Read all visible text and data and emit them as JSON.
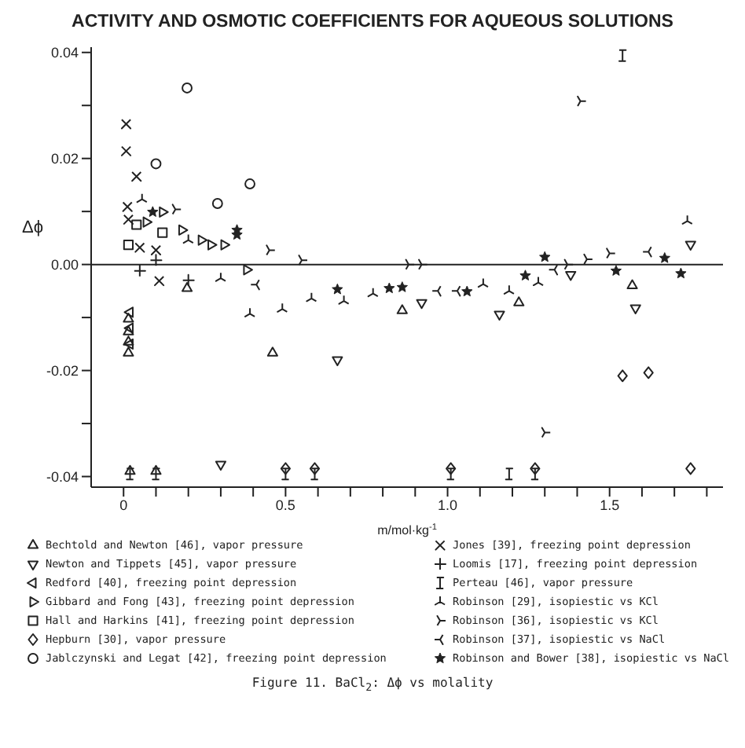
{
  "chart_data": {
    "type": "scatter",
    "title": "ACTIVITY AND OSMOTIC COEFFICIENTS FOR AQUEOUS SOLUTIONS",
    "xlabel": "m/mol·kg$^{-1}$",
    "ylabel": "Δϕ",
    "annotations": [
      "Figure 11. BaCl$_{2}$: Δϕ vs molality"
    ],
    "xlim": [
      -0.1,
      1.85
    ],
    "xticks": [
      {
        "value": 0,
        "label": "0"
      },
      {
        "value": 0.1,
        "label": null
      },
      {
        "value": 0.2,
        "label": null
      },
      {
        "value": 0.3,
        "label": null
      },
      {
        "value": 0.4,
        "label": null
      },
      {
        "value": 0.5,
        "label": "0.5"
      },
      {
        "value": 0.6,
        "label": null
      },
      {
        "value": 0.7,
        "label": null
      },
      {
        "value": 0.8,
        "label": null
      },
      {
        "value": 0.9,
        "label": null
      },
      {
        "value": 1,
        "label": "1.0"
      },
      {
        "value": 1.1,
        "label": null
      },
      {
        "value": 1.2,
        "label": null
      },
      {
        "value": 1.3,
        "label": null
      },
      {
        "value": 1.4,
        "label": null
      },
      {
        "value": 1.5,
        "label": "1.5"
      },
      {
        "value": 1.6,
        "label": null
      },
      {
        "value": 1.7,
        "label": null
      },
      {
        "value": 1.8,
        "label": null
      }
    ],
    "ylim": [
      -0.042,
      0.041
    ],
    "yticks": [
      {
        "value": -0.04,
        "label": "-0.04"
      },
      {
        "value": -0.03,
        "label": null
      },
      {
        "value": -0.02,
        "label": "-0.02"
      },
      {
        "value": -0.01,
        "label": null
      },
      {
        "value": 0,
        "label": "0.00"
      },
      {
        "value": 0.01,
        "label": null
      },
      {
        "value": 0.02,
        "label": "0.02"
      },
      {
        "value": 0.03,
        "label": null
      },
      {
        "value": 0.04,
        "label": "0.04"
      }
    ],
    "ref_lines": [
      {
        "axis": "y",
        "value": 0,
        "color": "#222222"
      }
    ],
    "grid": false,
    "legend": "bottom",
    "series": [
      {
        "name": "Bechtold and Newton [46], vapor pressure",
        "color": "#222222",
        "marker": "triangle",
        "x": [
          0.015,
          0.015,
          0.015,
          0.015,
          0.196,
          0.46,
          0.86,
          1.22,
          1.57,
          0.02,
          0.1
        ],
        "values": [
          -0.0103,
          -0.0127,
          -0.0146,
          -0.0167,
          -0.0045,
          -0.0167,
          -0.0087,
          -0.0072,
          -0.004,
          -0.039,
          -0.039
        ]
      },
      {
        "name": "Newton and Tippets [45], vapor pressure",
        "color": "#222222",
        "marker": "triangle",
        "x": [
          0.3,
          0.66,
          1.16,
          1.58,
          0.92,
          1.38,
          1.75
        ],
        "values": [
          -0.0377,
          -0.018,
          -0.0094,
          -0.0082,
          -0.0072,
          -0.0019,
          0.0038
        ]
      },
      {
        "name": "Redford [40], freezing point depression",
        "color": "#222222",
        "marker": "triangle",
        "x": [
          0.02,
          0.02,
          0.02
        ],
        "values": [
          -0.009,
          -0.012,
          -0.015
        ]
      },
      {
        "name": "Gibbard and Fong [43], freezing point depression",
        "color": "#222222",
        "marker": "triangle",
        "x": [
          0.07,
          0.12,
          0.18,
          0.24,
          0.27,
          0.31,
          0.38
        ],
        "values": [
          0.008,
          0.0099,
          0.0065,
          0.0046,
          0.0037,
          0.0037,
          -0.001
        ]
      },
      {
        "name": "Hall and Harkins [41], freezing point depression",
        "color": "#222222",
        "marker": "square",
        "x": [
          0.04,
          0.12,
          0.015
        ],
        "values": [
          0.0075,
          0.006,
          0.0037
        ]
      },
      {
        "name": "Hepburn [30], vapor pressure",
        "color": "#222222",
        "marker": "diamond",
        "x": [
          0.5,
          0.59,
          1.01,
          1.27,
          1.54,
          1.62,
          1.75
        ],
        "values": [
          -0.0385,
          -0.0385,
          -0.0385,
          -0.0385,
          -0.021,
          -0.0204,
          -0.0385
        ]
      },
      {
        "name": "Jablczynski and Legat [42], freezing point depression",
        "color": "#222222",
        "marker": "circle",
        "x": [
          0.196,
          0.1,
          0.29,
          0.39
        ],
        "values": [
          0.0333,
          0.019,
          0.0115,
          0.0152
        ]
      },
      {
        "name": "Jones [39], freezing point depression",
        "color": "#222222",
        "marker": "cross",
        "x": [
          0.008,
          0.008,
          0.04,
          0.012,
          0.015,
          0.05,
          0.11,
          0.1
        ],
        "values": [
          0.0265,
          0.0214,
          0.0166,
          0.0109,
          0.0085,
          0.0032,
          -0.0031,
          0.0027
        ]
      },
      {
        "name": "Loomis [17], freezing point depression",
        "color": "#222222",
        "marker": "cross",
        "x": [
          0.05,
          0.1,
          0.2
        ],
        "values": [
          -0.0012,
          0.0008,
          -0.003
        ]
      },
      {
        "name": "Perteau [46], vapor pressure",
        "color": "#222222",
        "marker": "cross",
        "x": [
          0.02,
          0.1,
          0.5,
          0.59,
          1.01,
          1.19,
          1.27,
          1.54
        ],
        "values": [
          -0.0395,
          -0.0395,
          -0.0395,
          -0.0395,
          -0.0395,
          -0.0395,
          -0.0395,
          0.0394
        ]
      },
      {
        "name": "Robinson [29], isopiestic vs KCl",
        "color": "#222222",
        "marker": "cross",
        "x": [
          0.057,
          0.2,
          0.3,
          0.39,
          0.49,
          0.58,
          0.68,
          0.77,
          1.11,
          1.19,
          1.28,
          1.74
        ],
        "values": [
          0.0123,
          0.0046,
          -0.0026,
          -0.0093,
          -0.0084,
          -0.0064,
          -0.0069,
          -0.0055,
          -0.0037,
          -0.005,
          -0.0034,
          0.0082
        ]
      },
      {
        "name": "Robinson [36], isopiestic vs KCl",
        "color": "#222222",
        "marker": "cross",
        "x": [
          0.16,
          0.45,
          0.55,
          0.88,
          0.92,
          1.37,
          1.43,
          1.5,
          1.3,
          1.41
        ],
        "values": [
          0.0104,
          0.0027,
          0.0008,
          0,
          0,
          0,
          0.001,
          0.0021,
          -0.0317,
          0.0308
        ]
      },
      {
        "name": "Robinson [37], isopiestic vs NaCl",
        "color": "#222222",
        "marker": "cross",
        "x": [
          0.41,
          0.97,
          1.03,
          1.33,
          1.62
        ],
        "values": [
          -0.0038,
          -0.005,
          -0.005,
          -0.001,
          0.0024
        ]
      },
      {
        "name": "Robinson and Bower [38], isopiestic vs NaCl",
        "color": "#222222",
        "marker": "star",
        "x": [
          0.09,
          0.35,
          0.35,
          0.66,
          0.82,
          0.86,
          1.06,
          1.24,
          1.3,
          1.52,
          1.67,
          1.72
        ],
        "values": [
          0.0099,
          0.0065,
          0.0056,
          -0.0047,
          -0.0045,
          -0.0043,
          -0.0051,
          -0.0021,
          0.0014,
          -0.0012,
          0.0012,
          -0.0017
        ]
      }
    ]
  }
}
